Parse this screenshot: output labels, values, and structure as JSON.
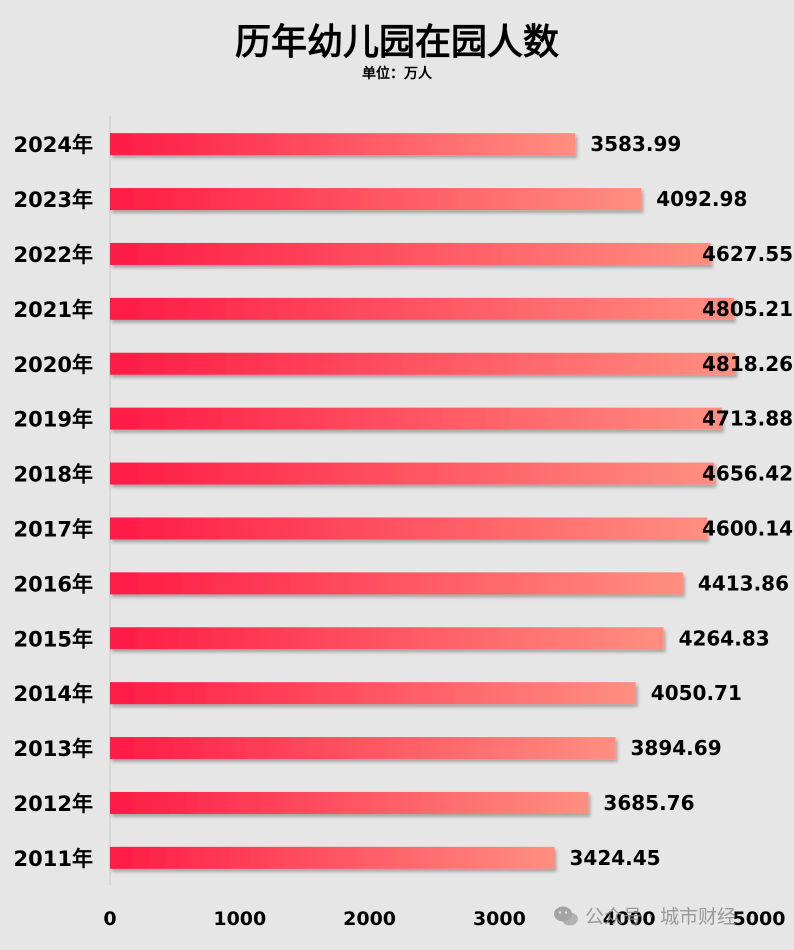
{
  "chart_data": {
    "type": "bar",
    "orientation": "horizontal",
    "title": "历年幼儿园在园人数",
    "subtitle": "单位：万人",
    "categories": [
      "2024年",
      "2023年",
      "2022年",
      "2021年",
      "2020年",
      "2019年",
      "2018年",
      "2017年",
      "2016年",
      "2015年",
      "2014年",
      "2013年",
      "2012年",
      "2011年"
    ],
    "values": [
      3583.99,
      4092.98,
      4627.55,
      4805.21,
      4818.26,
      4713.88,
      4656.42,
      4600.14,
      4413.86,
      4264.83,
      4050.71,
      3894.69,
      3685.76,
      3424.45
    ],
    "value_labels": [
      "3583.99",
      "4092.98",
      "4627.55",
      "4805.21",
      "4818.26",
      "4713.88",
      "4656.42",
      "4600.14",
      "4413.86",
      "4264.83",
      "4050.71",
      "3894.69",
      "3685.76",
      "3424.45"
    ],
    "x_ticks": [
      "0",
      "1000",
      "2000",
      "3000",
      "4000",
      "5000"
    ],
    "xlim": [
      0,
      5000
    ],
    "grid": false,
    "bar_gradient": [
      "#ff1a45",
      "#ff8f80"
    ]
  },
  "watermark": {
    "icon": "wechat-icon",
    "text": "公众号 · 城市财经"
  }
}
